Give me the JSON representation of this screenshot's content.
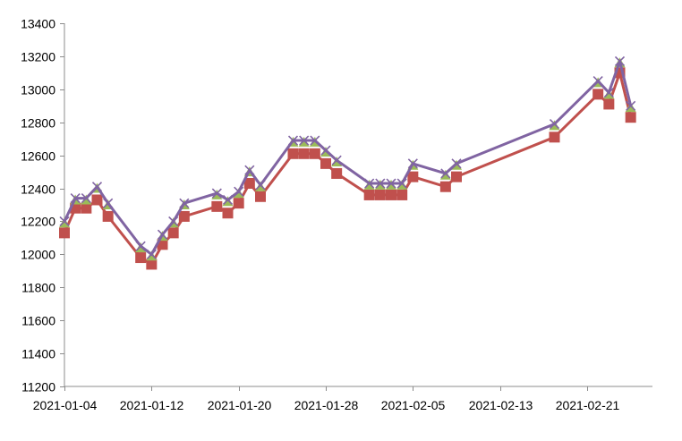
{
  "chart_data": {
    "type": "line",
    "title": "",
    "xlabel": "",
    "ylabel": "",
    "ylim": [
      11200,
      13400
    ],
    "grid": false,
    "legend": "none",
    "y_ticks": [
      11200,
      11400,
      11600,
      11800,
      12000,
      12200,
      12400,
      12600,
      12800,
      13000,
      13200,
      13400
    ],
    "x_tick_labels": [
      "2021-01-04",
      "2021-01-12",
      "2021-01-20",
      "2021-01-28",
      "2021-02-05",
      "2021-02-13",
      "2021-02-21"
    ],
    "x_range": [
      "2021-01-04",
      "2021-02-27"
    ],
    "x": [
      "2021-01-04",
      "2021-01-05",
      "2021-01-06",
      "2021-01-07",
      "2021-01-08",
      "2021-01-11",
      "2021-01-12",
      "2021-01-13",
      "2021-01-14",
      "2021-01-15",
      "2021-01-18",
      "2021-01-19",
      "2021-01-20",
      "2021-01-21",
      "2021-01-22",
      "2021-01-25",
      "2021-01-26",
      "2021-01-27",
      "2021-01-28",
      "2021-01-29",
      "2021-02-01",
      "2021-02-02",
      "2021-02-03",
      "2021-02-04",
      "2021-02-05",
      "2021-02-08",
      "2021-02-09",
      "2021-02-18",
      "2021-02-22",
      "2021-02-23",
      "2021-02-24",
      "2021-02-25"
    ],
    "series": [
      {
        "marker": "square",
        "color": "#c0504d",
        "values": [
          12130,
          12280,
          12280,
          12330,
          12230,
          11980,
          11940,
          12060,
          12130,
          12230,
          12290,
          12250,
          12310,
          12430,
          12350,
          12610,
          12610,
          12610,
          12550,
          12490,
          12360,
          12360,
          12360,
          12360,
          12470,
          12410,
          12470,
          12710,
          12970,
          12910,
          13100,
          12830
        ]
      },
      {
        "marker": "triangle",
        "color": "#9bbb59",
        "values": [
          12190,
          12330,
          12330,
          12400,
          12300,
          12040,
          11990,
          12110,
          12190,
          12300,
          12360,
          12320,
          12370,
          12500,
          12410,
          12680,
          12680,
          12680,
          12620,
          12560,
          12420,
          12420,
          12420,
          12420,
          12540,
          12480,
          12540,
          12780,
          13040,
          12970,
          13160,
          12890
        ]
      },
      {
        "marker": "x",
        "color": "#8064a2",
        "values": [
          12200,
          12340,
          12340,
          12410,
          12310,
          12050,
          12000,
          12120,
          12200,
          12310,
          12370,
          12330,
          12380,
          12510,
          12420,
          12690,
          12690,
          12690,
          12630,
          12570,
          12430,
          12430,
          12430,
          12430,
          12550,
          12490,
          12550,
          12790,
          13050,
          12980,
          13170,
          12900
        ]
      }
    ]
  }
}
